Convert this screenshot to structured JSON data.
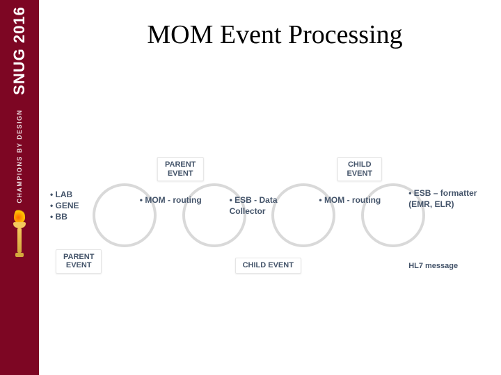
{
  "sidebar": {
    "logo_text": "SNUG 2016",
    "tagline": "CHAMPIONS BY DESIGN"
  },
  "title": "MOM Event Processing",
  "colors": {
    "sidebar_bg": "#7d0623",
    "sidebar_text": "#ffffff",
    "slide_bg": "#ffffff",
    "text_color": "#44546a",
    "ring_color": "rgba(0,0,0,0.15)"
  },
  "flow": {
    "stages": [
      {
        "top_label": "",
        "bottom_label": "PARENT\nEVENT",
        "bullets": [
          "LAB",
          "GENE",
          "BB"
        ]
      },
      {
        "top_label": "PARENT\nEVENT",
        "bottom_label": "",
        "bullets": [
          "MOM - routing"
        ]
      },
      {
        "top_label": "",
        "bottom_label": "CHILD EVENT",
        "bullets": [
          "ESB - Data Collector"
        ]
      },
      {
        "top_label": "CHILD EVENT",
        "bottom_label": "",
        "bullets": [
          "MOM - routing"
        ]
      },
      {
        "top_label": "",
        "bottom_label": "HL7 message",
        "bullets": [
          "ESB – formatter (EMR, ELR)"
        ]
      }
    ]
  }
}
